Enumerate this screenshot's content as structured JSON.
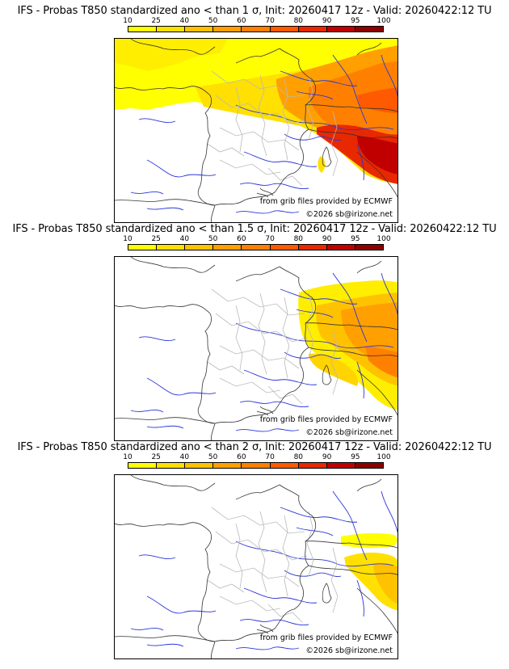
{
  "colorbar": {
    "ticks": [
      "10",
      "25",
      "40",
      "50",
      "60",
      "70",
      "80",
      "90",
      "95",
      "100"
    ],
    "colors": [
      "#ffff00",
      "#ffe000",
      "#ffc200",
      "#ffa000",
      "#ff8000",
      "#ff5a00",
      "#e82800",
      "#c00000",
      "#8c0000"
    ]
  },
  "panels": [
    {
      "title": "IFS - Probas T850  standardized ano < than 1 σ, Init: 20260417 12z - Valid: 20260422:12 TU",
      "credit_line1": "from grib files provided by ECMWF",
      "credit_line2": "©2026 sb@irizone.net"
    },
    {
      "title": "IFS - Probas T850  standardized ano < than 1.5 σ, Init: 20260417 12z - Valid: 20260422:12 TU",
      "credit_line1": "from grib files provided by ECMWF",
      "credit_line2": "©2026 sb@irizone.net"
    },
    {
      "title": "IFS - Probas T850  standardized ano < than 2 σ, Init: 20260417 12z - Valid: 20260422:12 TU",
      "credit_line1": "from grib files provided by ECMWF",
      "credit_line2": "©2026 sb@irizone.net"
    }
  ]
}
